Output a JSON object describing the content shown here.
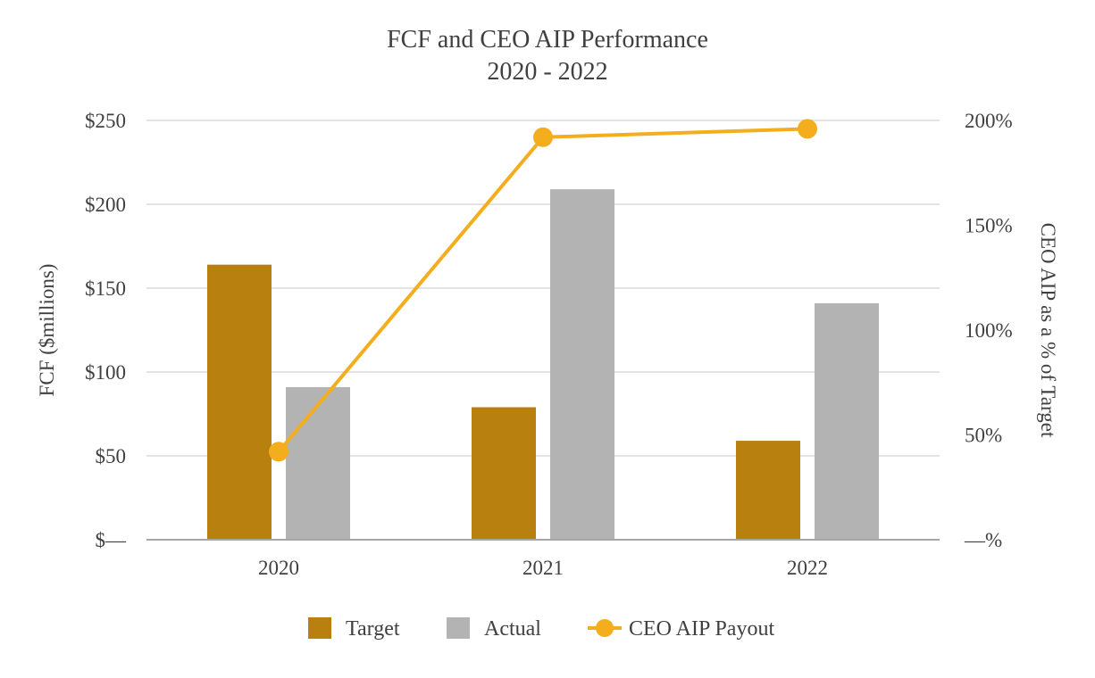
{
  "chart_data": {
    "type": "bar",
    "title": "FCF and CEO AIP Performance",
    "subtitle": "2020 - 2022",
    "categories": [
      "2020",
      "2021",
      "2022"
    ],
    "series": [
      {
        "name": "Target",
        "kind": "bar",
        "axis": "left",
        "color": "#b8800f",
        "values": [
          164,
          79,
          59
        ]
      },
      {
        "name": "Actual",
        "kind": "bar",
        "axis": "left",
        "color": "#b3b3b3",
        "values": [
          91,
          209,
          141
        ]
      },
      {
        "name": "CEO AIP Payout",
        "kind": "line",
        "axis": "right",
        "color": "#f4ad1c",
        "values": [
          42,
          192,
          196
        ]
      }
    ],
    "y_left": {
      "label": "FCF ($millions)",
      "range": [
        0,
        250
      ],
      "ticks": [
        0,
        50,
        100,
        150,
        200,
        250
      ],
      "tick_labels": [
        "$—",
        "$50",
        "$100",
        "$150",
        "$200",
        "$250"
      ]
    },
    "y_right": {
      "label": "CEO AIP as a % of Target",
      "range": [
        0,
        200
      ],
      "ticks": [
        0,
        50,
        100,
        150,
        200
      ],
      "tick_labels": [
        "—%",
        "50%",
        "100%",
        "150%",
        "200%"
      ]
    },
    "grid": true,
    "legend_position": "bottom-center",
    "legend": [
      "Target",
      "Actual",
      "CEO AIP Payout"
    ]
  }
}
